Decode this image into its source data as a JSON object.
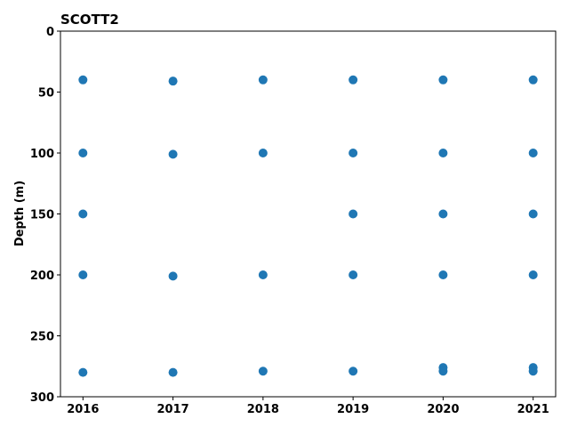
{
  "chart_data": {
    "type": "scatter",
    "title": "SCOTT2",
    "xlabel": "",
    "ylabel": "Depth (m)",
    "xlim": [
      2015.75,
      2021.25
    ],
    "ylim": [
      300,
      0
    ],
    "y_inverted": true,
    "x_ticks": [
      "2016",
      "2017",
      "2018",
      "2019",
      "2020",
      "2021"
    ],
    "x_tick_values": [
      2016,
      2017,
      2018,
      2019,
      2020,
      2021
    ],
    "y_ticks": [
      "0",
      "50",
      "100",
      "150",
      "200",
      "250",
      "300"
    ],
    "y_tick_values": [
      0,
      50,
      100,
      150,
      200,
      250,
      300
    ],
    "grid": false,
    "marker_color": "#1f77b4",
    "series": [
      {
        "points": [
          {
            "x": 2016,
            "y": 40
          },
          {
            "x": 2016,
            "y": 100
          },
          {
            "x": 2016,
            "y": 150
          },
          {
            "x": 2016,
            "y": 200
          },
          {
            "x": 2016,
            "y": 280
          },
          {
            "x": 2017,
            "y": 41
          },
          {
            "x": 2017,
            "y": 101
          },
          {
            "x": 2017,
            "y": 201
          },
          {
            "x": 2017,
            "y": 280
          },
          {
            "x": 2018,
            "y": 40
          },
          {
            "x": 2018,
            "y": 100
          },
          {
            "x": 2018,
            "y": 200
          },
          {
            "x": 2018,
            "y": 279
          },
          {
            "x": 2019,
            "y": 40
          },
          {
            "x": 2019,
            "y": 100
          },
          {
            "x": 2019,
            "y": 150
          },
          {
            "x": 2019,
            "y": 200
          },
          {
            "x": 2019,
            "y": 279
          },
          {
            "x": 2020,
            "y": 40
          },
          {
            "x": 2020,
            "y": 100
          },
          {
            "x": 2020,
            "y": 150
          },
          {
            "x": 2020,
            "y": 200
          },
          {
            "x": 2020,
            "y": 276
          },
          {
            "x": 2020,
            "y": 279
          },
          {
            "x": 2021,
            "y": 40
          },
          {
            "x": 2021,
            "y": 100
          },
          {
            "x": 2021,
            "y": 150
          },
          {
            "x": 2021,
            "y": 200
          },
          {
            "x": 2021,
            "y": 276
          },
          {
            "x": 2021,
            "y": 279
          }
        ]
      }
    ]
  }
}
